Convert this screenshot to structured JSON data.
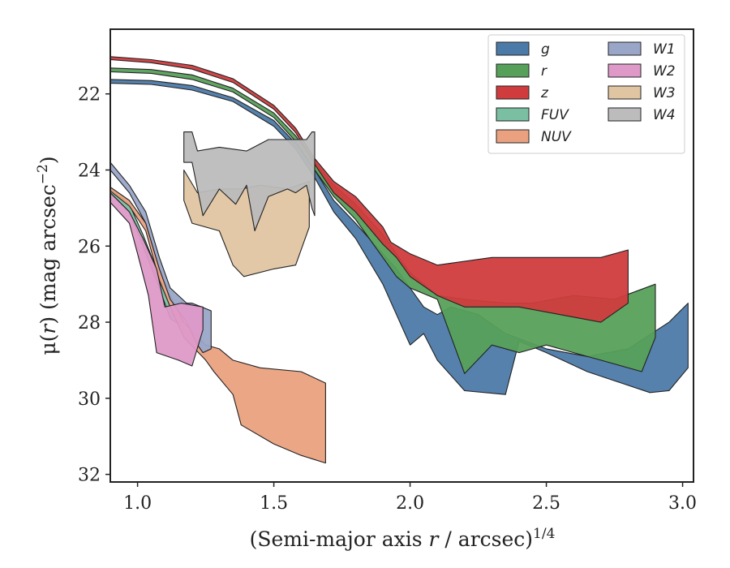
{
  "chart_data": {
    "type": "area",
    "title": "",
    "xlabel_parts": [
      "(Semi-major axis ",
      "r",
      " / arcsec)",
      "1/4"
    ],
    "ylabel_parts": [
      "μ(",
      "r",
      ") (mag arcsec",
      "−2",
      ")"
    ],
    "xlim": [
      0.9,
      3.04
    ],
    "ylim": [
      32.2,
      20.3
    ],
    "y_inverted": true,
    "xticks": [
      1.0,
      1.5,
      2.0,
      2.5,
      3.0
    ],
    "xtick_labels": [
      "1.0",
      "1.5",
      "2.0",
      "2.5",
      "3.0"
    ],
    "yticks": [
      22,
      24,
      26,
      28,
      30,
      32
    ],
    "ytick_labels": [
      "22",
      "24",
      "26",
      "28",
      "30",
      "32"
    ],
    "grid": false,
    "legend_placement": "top-right",
    "legend_columns": 2,
    "series": [
      {
        "name": "g",
        "color": "#4c7aa8",
        "upper": [
          [
            0.9,
            21.62
          ],
          [
            1.05,
            21.65
          ],
          [
            1.2,
            21.78
          ],
          [
            1.35,
            22.1
          ],
          [
            1.5,
            22.7
          ],
          [
            1.58,
            23.3
          ],
          [
            1.65,
            24.0
          ],
          [
            1.72,
            24.8
          ],
          [
            1.8,
            25.4
          ],
          [
            1.9,
            26.2
          ],
          [
            1.95,
            26.6
          ],
          [
            2.0,
            27.1
          ],
          [
            2.05,
            27.6
          ],
          [
            2.1,
            27.8
          ],
          [
            2.15,
            27.6
          ],
          [
            2.25,
            27.8
          ],
          [
            2.35,
            28.3
          ],
          [
            2.5,
            28.7
          ],
          [
            2.65,
            28.9
          ],
          [
            2.8,
            28.7
          ],
          [
            2.95,
            28.0
          ],
          [
            3.02,
            27.5
          ]
        ],
        "lower": [
          [
            0.9,
            21.72
          ],
          [
            1.05,
            21.75
          ],
          [
            1.2,
            21.9
          ],
          [
            1.35,
            22.2
          ],
          [
            1.5,
            22.85
          ],
          [
            1.58,
            23.45
          ],
          [
            1.65,
            24.2
          ],
          [
            1.72,
            25.1
          ],
          [
            1.8,
            25.8
          ],
          [
            1.9,
            27.0
          ],
          [
            1.95,
            27.8
          ],
          [
            2.0,
            28.6
          ],
          [
            2.05,
            28.3
          ],
          [
            2.1,
            29.0
          ],
          [
            2.2,
            29.8
          ],
          [
            2.35,
            29.9
          ],
          [
            2.4,
            28.5
          ],
          [
            2.5,
            28.8
          ],
          [
            2.65,
            29.3
          ],
          [
            2.88,
            29.85
          ],
          [
            2.95,
            29.8
          ],
          [
            3.02,
            29.2
          ]
        ]
      },
      {
        "name": "r",
        "color": "#57a05a",
        "upper": [
          [
            0.9,
            21.32
          ],
          [
            1.05,
            21.36
          ],
          [
            1.2,
            21.5
          ],
          [
            1.35,
            21.85
          ],
          [
            1.5,
            22.5
          ],
          [
            1.58,
            23.1
          ],
          [
            1.65,
            23.8
          ],
          [
            1.72,
            24.4
          ],
          [
            1.8,
            24.9
          ],
          [
            1.9,
            25.7
          ],
          [
            1.95,
            26.2
          ],
          [
            2.0,
            26.7
          ],
          [
            2.05,
            27.0
          ],
          [
            2.1,
            27.3
          ],
          [
            2.2,
            27.4
          ],
          [
            2.35,
            27.5
          ],
          [
            2.45,
            27.5
          ],
          [
            2.6,
            27.3
          ],
          [
            2.75,
            27.4
          ],
          [
            2.9,
            27.0
          ]
        ],
        "lower": [
          [
            0.9,
            21.42
          ],
          [
            1.05,
            21.46
          ],
          [
            1.2,
            21.62
          ],
          [
            1.35,
            21.95
          ],
          [
            1.5,
            22.62
          ],
          [
            1.58,
            23.25
          ],
          [
            1.65,
            24.0
          ],
          [
            1.72,
            24.7
          ],
          [
            1.8,
            25.3
          ],
          [
            1.9,
            26.3
          ],
          [
            1.95,
            26.8
          ],
          [
            2.0,
            27.1
          ],
          [
            2.1,
            27.4
          ],
          [
            2.2,
            29.35
          ],
          [
            2.3,
            28.6
          ],
          [
            2.4,
            28.8
          ],
          [
            2.5,
            28.6
          ],
          [
            2.6,
            28.8
          ],
          [
            2.7,
            29.0
          ],
          [
            2.85,
            29.3
          ],
          [
            2.9,
            28.4
          ]
        ]
      },
      {
        "name": "z",
        "color": "#d03c3e",
        "upper": [
          [
            0.9,
            21.02
          ],
          [
            1.05,
            21.1
          ],
          [
            1.2,
            21.25
          ],
          [
            1.35,
            21.6
          ],
          [
            1.5,
            22.3
          ],
          [
            1.58,
            22.9
          ],
          [
            1.65,
            23.7
          ],
          [
            1.72,
            24.3
          ],
          [
            1.8,
            24.7
          ],
          [
            1.9,
            25.5
          ],
          [
            1.93,
            25.9
          ],
          [
            2.0,
            26.2
          ],
          [
            2.1,
            26.5
          ],
          [
            2.3,
            26.3
          ],
          [
            2.45,
            26.3
          ],
          [
            2.6,
            26.3
          ],
          [
            2.7,
            26.3
          ],
          [
            2.8,
            26.1
          ]
        ],
        "lower": [
          [
            0.9,
            21.1
          ],
          [
            1.05,
            21.18
          ],
          [
            1.2,
            21.35
          ],
          [
            1.35,
            21.7
          ],
          [
            1.5,
            22.4
          ],
          [
            1.58,
            23.02
          ],
          [
            1.65,
            23.85
          ],
          [
            1.72,
            24.6
          ],
          [
            1.8,
            25.1
          ],
          [
            1.9,
            25.95
          ],
          [
            1.95,
            26.3
          ],
          [
            2.0,
            26.8
          ],
          [
            2.1,
            27.3
          ],
          [
            2.2,
            27.6
          ],
          [
            2.3,
            27.6
          ],
          [
            2.4,
            27.6
          ],
          [
            2.55,
            27.8
          ],
          [
            2.7,
            28.0
          ],
          [
            2.8,
            27.5
          ]
        ]
      },
      {
        "name": "FUV",
        "color": "#7bbfa2",
        "upper": [
          [
            0.9,
            24.5
          ],
          [
            0.97,
            24.9
          ],
          [
            1.02,
            25.7
          ],
          [
            1.08,
            26.8
          ],
          [
            1.12,
            27.6
          ],
          [
            1.16,
            27.9
          ]
        ],
        "lower": [
          [
            0.9,
            24.6
          ],
          [
            0.97,
            25.1
          ],
          [
            1.02,
            26.0
          ],
          [
            1.08,
            27.1
          ],
          [
            1.12,
            27.9
          ],
          [
            1.16,
            28.1
          ]
        ]
      },
      {
        "name": "NUV",
        "color": "#eaa17f",
        "upper": [
          [
            0.9,
            24.45
          ],
          [
            0.97,
            24.8
          ],
          [
            1.03,
            25.4
          ],
          [
            1.08,
            26.6
          ],
          [
            1.12,
            27.3
          ],
          [
            1.17,
            28.0
          ],
          [
            1.25,
            28.6
          ],
          [
            1.3,
            28.7
          ],
          [
            1.35,
            29.0
          ],
          [
            1.45,
            29.2
          ],
          [
            1.6,
            29.3
          ],
          [
            1.69,
            29.6
          ]
        ],
        "lower": [
          [
            0.9,
            24.55
          ],
          [
            0.97,
            24.95
          ],
          [
            1.03,
            25.6
          ],
          [
            1.08,
            26.9
          ],
          [
            1.12,
            27.6
          ],
          [
            1.17,
            28.4
          ],
          [
            1.25,
            29.0
          ],
          [
            1.28,
            29.3
          ],
          [
            1.35,
            29.9
          ],
          [
            1.38,
            30.7
          ],
          [
            1.5,
            31.2
          ],
          [
            1.6,
            31.5
          ],
          [
            1.69,
            31.7
          ]
        ]
      },
      {
        "name": "W1",
        "color": "#9aa6c8",
        "upper": [
          [
            0.9,
            23.8
          ],
          [
            0.97,
            24.4
          ],
          [
            1.03,
            25.1
          ],
          [
            1.08,
            26.3
          ],
          [
            1.12,
            27.1
          ],
          [
            1.18,
            27.5
          ],
          [
            1.2,
            27.5
          ],
          [
            1.27,
            27.7
          ]
        ],
        "lower": [
          [
            0.9,
            24.0
          ],
          [
            0.97,
            24.6
          ],
          [
            1.03,
            25.4
          ],
          [
            1.08,
            26.6
          ],
          [
            1.12,
            27.4
          ],
          [
            1.18,
            28.0
          ],
          [
            1.22,
            28.6
          ],
          [
            1.24,
            28.8
          ],
          [
            1.27,
            28.7
          ]
        ]
      },
      {
        "name": "W2",
        "color": "#de99c8",
        "upper": [
          [
            0.9,
            24.6
          ],
          [
            0.97,
            25.1
          ],
          [
            1.02,
            25.8
          ],
          [
            1.07,
            26.6
          ],
          [
            1.1,
            27.6
          ],
          [
            1.16,
            27.5
          ],
          [
            1.24,
            27.6
          ]
        ],
        "lower": [
          [
            0.9,
            24.85
          ],
          [
            0.97,
            25.4
          ],
          [
            1.0,
            26.2
          ],
          [
            1.04,
            27.3
          ],
          [
            1.07,
            28.8
          ],
          [
            1.15,
            29.0
          ],
          [
            1.2,
            29.15
          ],
          [
            1.24,
            28.2
          ]
        ]
      },
      {
        "name": "W3",
        "color": "#e0c5a2",
        "upper": [
          [
            1.17,
            24.0
          ],
          [
            1.22,
            24.6
          ],
          [
            1.3,
            24.5
          ],
          [
            1.38,
            24.5
          ],
          [
            1.45,
            24.4
          ],
          [
            1.55,
            24.5
          ],
          [
            1.63,
            24.3
          ]
        ],
        "lower": [
          [
            1.17,
            24.8
          ],
          [
            1.2,
            25.4
          ],
          [
            1.3,
            25.6
          ],
          [
            1.35,
            26.5
          ],
          [
            1.39,
            26.8
          ],
          [
            1.5,
            26.6
          ],
          [
            1.58,
            26.5
          ],
          [
            1.63,
            25.5
          ]
        ]
      },
      {
        "name": "W4",
        "color": "#bcbcbc",
        "upper": [
          [
            1.17,
            23.0
          ],
          [
            1.2,
            23.0
          ],
          [
            1.22,
            23.5
          ],
          [
            1.3,
            23.4
          ],
          [
            1.4,
            23.5
          ],
          [
            1.48,
            23.2
          ],
          [
            1.6,
            23.2
          ],
          [
            1.62,
            23.2
          ],
          [
            1.64,
            23.0
          ],
          [
            1.65,
            23.0
          ]
        ],
        "lower": [
          [
            1.17,
            23.8
          ],
          [
            1.2,
            23.8
          ],
          [
            1.24,
            25.2
          ],
          [
            1.3,
            24.5
          ],
          [
            1.36,
            24.9
          ],
          [
            1.4,
            24.4
          ],
          [
            1.43,
            25.6
          ],
          [
            1.48,
            24.7
          ],
          [
            1.55,
            24.5
          ],
          [
            1.58,
            24.6
          ],
          [
            1.62,
            24.4
          ],
          [
            1.64,
            25.0
          ],
          [
            1.65,
            25.2
          ]
        ]
      }
    ]
  }
}
